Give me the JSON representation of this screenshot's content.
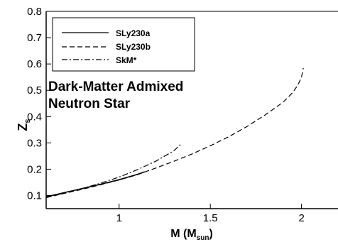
{
  "chart_data": {
    "type": "line",
    "title": "",
    "annotation": [
      "Dark-Matter Admixed",
      "Neutron Star"
    ],
    "xlabel": {
      "main": "M (M",
      "sub": "sun",
      "tail": ")"
    },
    "ylabel": {
      "main": "Z",
      "sub": "s"
    },
    "xlim": [
      0.6,
      2.2
    ],
    "ylim": [
      0.05,
      0.8
    ],
    "xticks": [
      1,
      1.5,
      2
    ],
    "xtick_labels": [
      "1",
      "1.5",
      "2"
    ],
    "yticks": [
      0.1,
      0.2,
      0.3,
      0.4,
      0.5,
      0.6,
      0.7,
      0.8
    ],
    "ytick_labels": [
      "0.1",
      "0.2",
      "0.3",
      "0.4",
      "0.5",
      "0.6",
      "0.7",
      "0.8"
    ],
    "grid": false,
    "legend_position": "top-left",
    "series": [
      {
        "name": "SLy230a",
        "dash": "solid",
        "x": [
          0.6,
          0.7,
          0.8,
          0.9,
          1.0,
          1.1,
          1.14
        ],
        "y": [
          0.095,
          0.111,
          0.127,
          0.143,
          0.16,
          0.18,
          0.19
        ]
      },
      {
        "name": "SLy230b",
        "dash": "dashed",
        "x": [
          0.6,
          0.7,
          0.8,
          0.9,
          1.0,
          1.1,
          1.2,
          1.3,
          1.4,
          1.5,
          1.6,
          1.7,
          1.8,
          1.9,
          1.95,
          1.98,
          2.0,
          2.01
        ],
        "y": [
          0.092,
          0.108,
          0.124,
          0.141,
          0.159,
          0.179,
          0.204,
          0.23,
          0.258,
          0.289,
          0.323,
          0.362,
          0.406,
          0.455,
          0.49,
          0.52,
          0.55,
          0.585
        ]
      },
      {
        "name": "SkM*",
        "dash": "dashdot",
        "x": [
          0.6,
          0.7,
          0.8,
          0.9,
          1.0,
          1.1,
          1.2,
          1.3,
          1.34
        ],
        "y": [
          0.092,
          0.109,
          0.127,
          0.147,
          0.17,
          0.198,
          0.23,
          0.27,
          0.296
        ]
      }
    ]
  }
}
